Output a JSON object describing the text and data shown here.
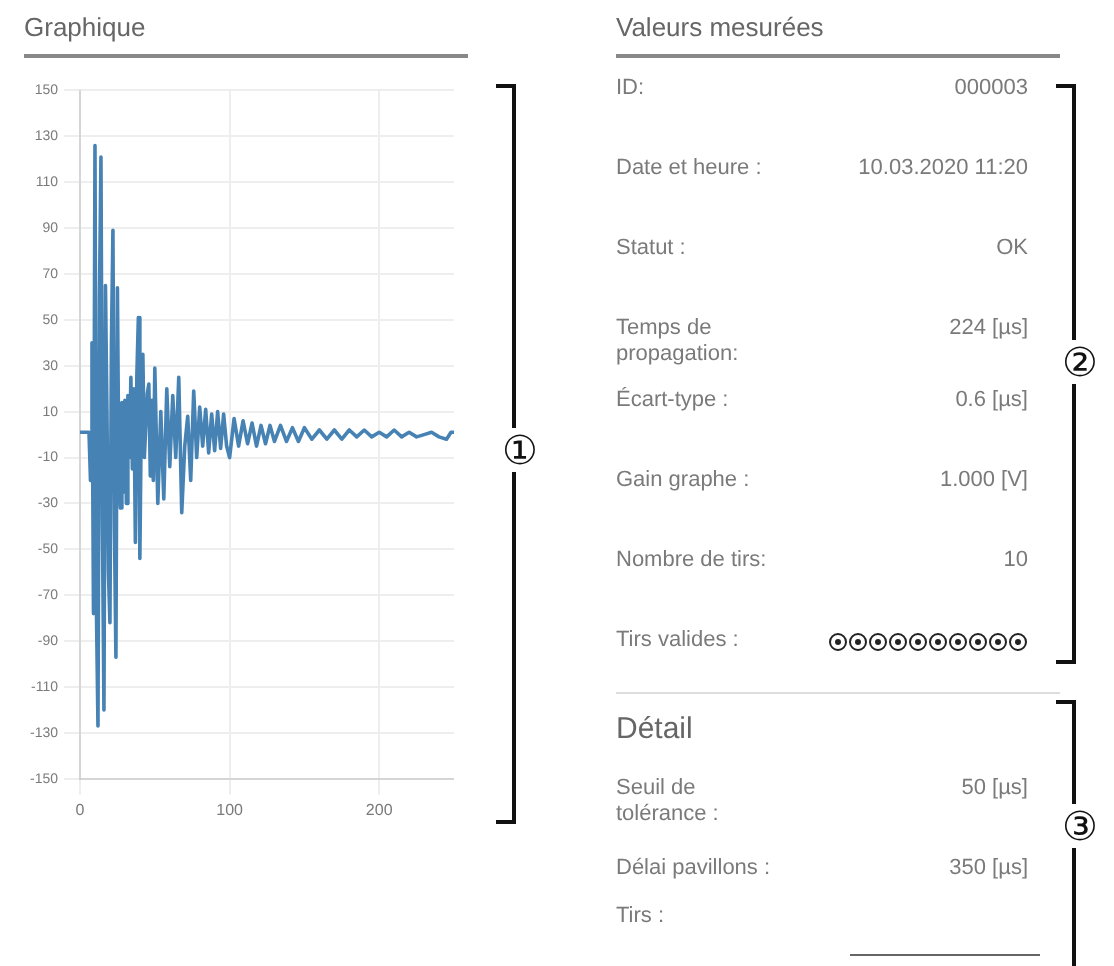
{
  "chart_data": [
    {
      "type": "line",
      "title": "Graphique",
      "color": "#4682b4",
      "grid": true,
      "xlim": [
        0,
        250
      ],
      "xticks": [
        0,
        100,
        200
      ],
      "ylim": [
        -150,
        150
      ],
      "yticks": [
        -150,
        -130,
        -110,
        -90,
        -70,
        -50,
        -30,
        -10,
        10,
        30,
        50,
        70,
        90,
        110,
        130,
        150
      ],
      "annotations": [
        "①"
      ],
      "x": [
        0,
        6,
        7,
        8,
        9,
        10,
        11,
        12,
        13,
        14,
        15,
        16,
        17,
        18,
        19,
        20,
        21,
        22,
        23,
        24,
        25,
        26,
        27,
        28,
        29,
        30,
        31,
        32,
        33,
        34,
        35,
        36,
        37,
        38,
        39,
        40,
        41,
        42,
        43,
        44,
        45,
        46,
        47,
        48,
        49,
        50,
        52,
        54,
        56,
        58,
        60,
        62,
        64,
        66,
        68,
        70,
        72,
        74,
        76,
        78,
        80,
        82,
        84,
        86,
        88,
        90,
        92,
        94,
        96,
        98,
        100,
        103,
        106,
        109,
        112,
        115,
        118,
        121,
        124,
        127,
        130,
        134,
        138,
        142,
        146,
        150,
        155,
        160,
        165,
        170,
        175,
        180,
        185,
        190,
        195,
        200,
        205,
        210,
        215,
        220,
        225,
        230,
        235,
        240,
        245,
        248,
        250
      ],
      "values": [
        1,
        1,
        -20,
        40,
        -78,
        126,
        -78,
        -127,
        60,
        121,
        -40,
        -120,
        65,
        10,
        -60,
        -82,
        40,
        89,
        -40,
        -97,
        64,
        -20,
        -32,
        14,
        -25,
        15,
        -30,
        17,
        -10,
        25,
        -15,
        20,
        -47,
        26,
        51,
        -54,
        10,
        35,
        -10,
        -10,
        18,
        22,
        -18,
        15,
        -20,
        29,
        -30,
        10,
        -28,
        20,
        -14,
        17,
        -10,
        25,
        -34,
        -5,
        8,
        -20,
        19,
        -10,
        12,
        -5,
        11,
        -8,
        9,
        -7,
        10,
        -6,
        9,
        -5,
        -10,
        7,
        -5,
        6,
        -4,
        5,
        -5,
        4,
        -4,
        4,
        -3,
        4,
        -3,
        3,
        -3,
        3,
        -2,
        2,
        -2,
        2,
        -2,
        2,
        -1,
        2,
        -1,
        1,
        -1,
        2,
        -1,
        1,
        -1,
        0,
        1,
        -1,
        -2,
        1,
        1
      ]
    },
    {
      "type": "other",
      "title": "Valeurs mesurées",
      "annotations": [
        "②",
        "ID:",
        "000003",
        "Date et heure :",
        "10.03.2020 11:20",
        "Statut :",
        "OK",
        "Temps de propagation:",
        "224 [µs]",
        "Écart-type :",
        "0.6 [µs]",
        "Gain graphe :",
        "1.000 [V]",
        "Nombre de tirs:",
        "10",
        "Tirs valides :",
        null
      ]
    },
    {
      "type": "other",
      "title": "Détail",
      "annotations": [
        "③",
        "Seuil de tolérance :",
        "50 [µs]",
        "Délai pavillons :",
        "350 [µs]",
        "Tirs :",
        null
      ]
    }
  ]
}
